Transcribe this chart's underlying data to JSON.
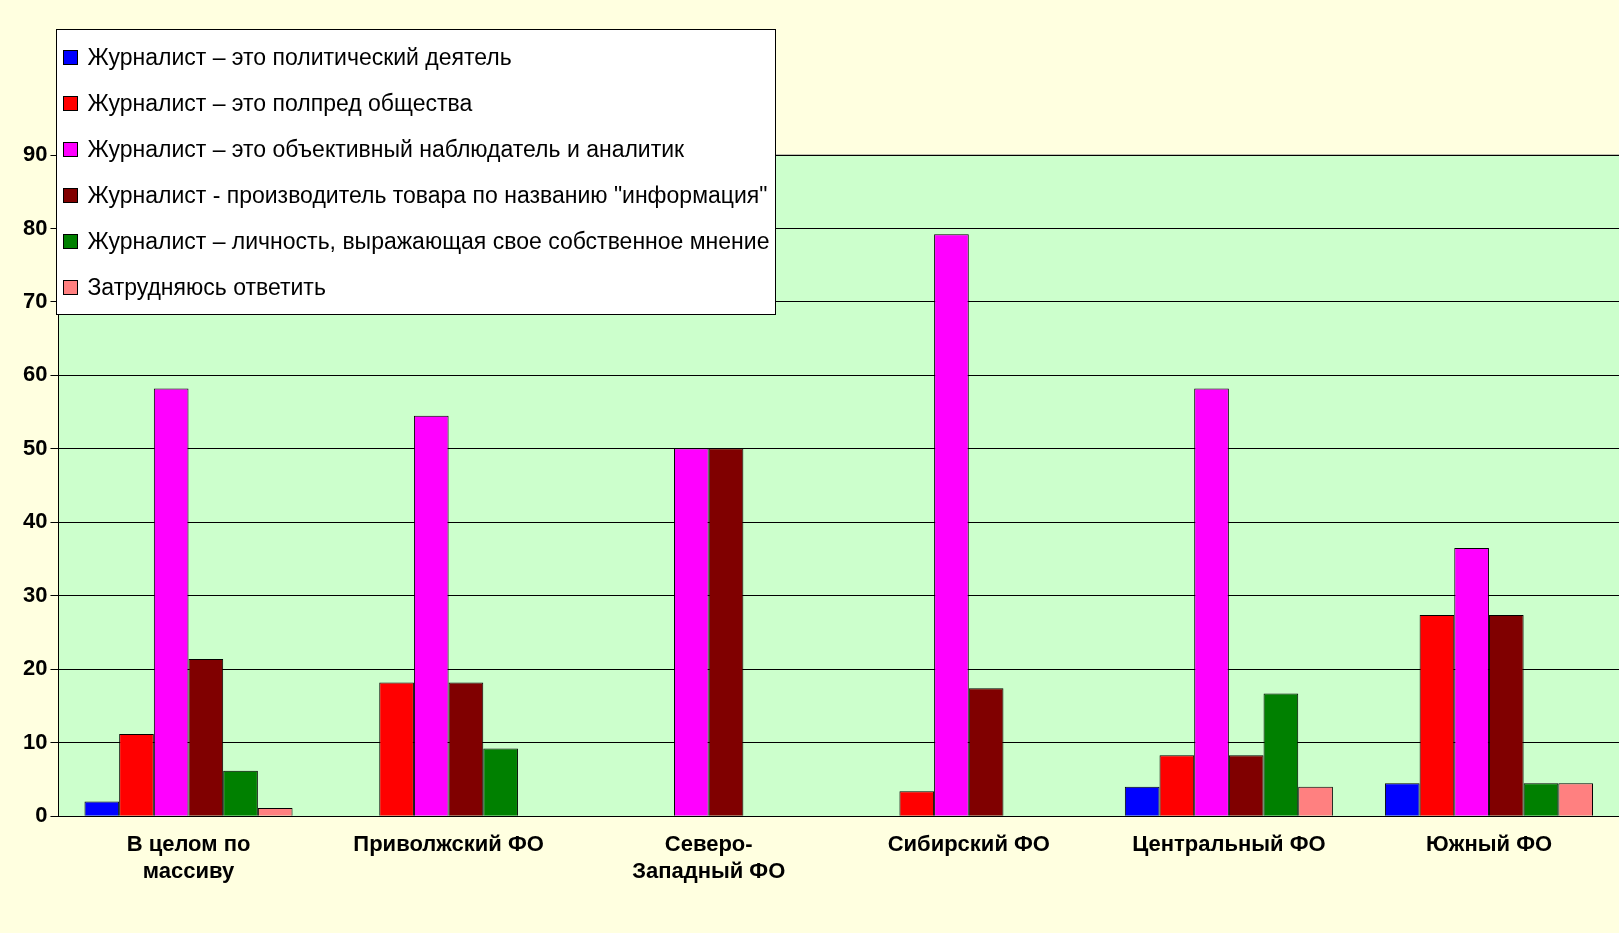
{
  "chart_data": {
    "type": "bar",
    "categories": [
      "В целом по массиву",
      "Приволжский ФО",
      "Северо-Западный ФО",
      "Сибирский ФО",
      "Центральный ФО",
      "Южный ФО"
    ],
    "series": [
      {
        "name": "Журналист – это политический деятель",
        "color": "#0000ff",
        "values": [
          2.0,
          null,
          null,
          null,
          4.0,
          4.5
        ]
      },
      {
        "name": "Журналист – это полпред общества",
        "color": "#ff0000",
        "values": [
          11.2,
          18.2,
          null,
          3.4,
          8.3,
          27.4
        ]
      },
      {
        "name": "Журналист – это объективный наблюдатель и аналитик",
        "color": "#ff00ff",
        "values": [
          58.2,
          54.5,
          50.1,
          79.2,
          58.2,
          36.5
        ]
      },
      {
        "name": "Журналист - производитель товара по названию \"информация\"",
        "color": "#800000",
        "values": [
          21.4,
          18.2,
          50.1,
          17.4,
          8.3,
          27.4
        ]
      },
      {
        "name": "Журналист – личность, выражающая свое собственное мнение",
        "color": "#008000",
        "values": [
          6.2,
          9.2,
          null,
          null,
          16.7,
          4.5
        ]
      },
      {
        "name": "Затрудняюсь ответить",
        "color": "#ff8080",
        "values": [
          1.1,
          null,
          null,
          null,
          4.0,
          4.5
        ]
      }
    ],
    "ylim": [
      0,
      90
    ],
    "yticks": [
      0,
      10,
      20,
      30,
      40,
      50,
      60,
      70,
      80,
      90
    ],
    "grid": "y",
    "legend": "top left"
  }
}
